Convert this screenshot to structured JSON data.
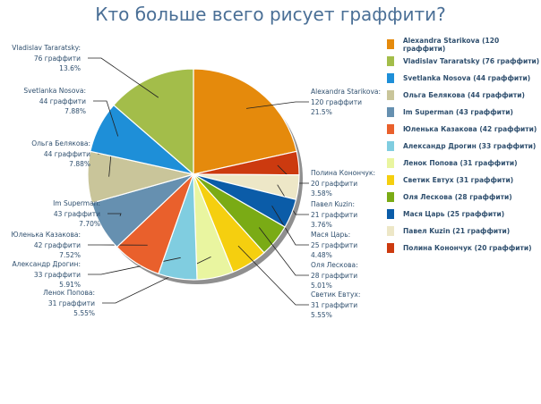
{
  "chart_data": {
    "type": "pie",
    "title": "Кто больше всего рисует граффити?",
    "unit": "граффити",
    "legend_placement": "right",
    "slices": [
      {
        "name": "Alexandra Starikova",
        "value": 120,
        "percent": "21.5%",
        "color": "#e58a0c"
      },
      {
        "name": "Vladislav Tararatsky",
        "value": 76,
        "percent": "13.6%",
        "color": "#a3bd4a"
      },
      {
        "name": "Svetlanka Nosova",
        "value": 44,
        "percent": "7.88%",
        "color": "#1e8fd8"
      },
      {
        "name": "Ольга Белякова",
        "value": 44,
        "percent": "7.88%",
        "color": "#c9c59a"
      },
      {
        "name": "Im Superman",
        "value": 43,
        "percent": "7.70%",
        "color": "#6690b0"
      },
      {
        "name": "Юленька Казакова",
        "value": 42,
        "percent": "7.52%",
        "color": "#e9602c"
      },
      {
        "name": "Александр Дрогин",
        "value": 33,
        "percent": "5.91%",
        "color": "#80cde0"
      },
      {
        "name": "Ленок Попова",
        "value": 31,
        "percent": "5.55%",
        "color": "#e9f5a0"
      },
      {
        "name": "Светик Евтух",
        "value": 31,
        "percent": "5.55%",
        "color": "#f5cf0f"
      },
      {
        "name": "Оля Лескова",
        "value": 28,
        "percent": "5.01%",
        "color": "#7aab15"
      },
      {
        "name": "Мася Царь",
        "value": 25,
        "percent": "4.48%",
        "color": "#0b5ca8"
      },
      {
        "name": "Павел Kuzin",
        "value": 21,
        "percent": "3.76%",
        "color": "#ede7c7"
      },
      {
        "name": "Полина Конончук",
        "value": 20,
        "percent": "3.58%",
        "color": "#cc3a0f"
      }
    ]
  }
}
